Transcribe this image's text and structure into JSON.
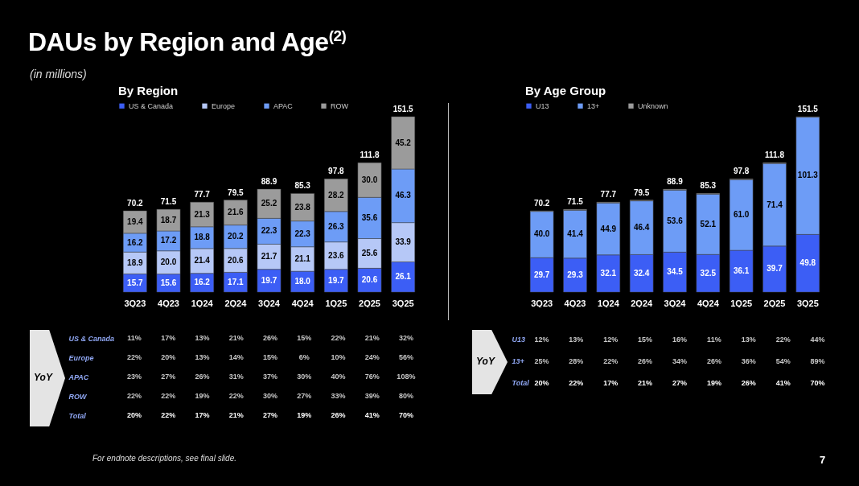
{
  "chart_data": [
    {
      "type": "other",
      "title": "DAUs by Region and Age$^{(2)}$",
      "subtitle": "(in millions)",
      "annotations": [
        "For endnote descriptions, see final slide.",
        "7"
      ]
    },
    {
      "type": "bar",
      "stacked": true,
      "title": "By Region",
      "legend": "top left",
      "categories": [
        "3Q23",
        "4Q23",
        "1Q24",
        "2Q24",
        "3Q24",
        "4Q24",
        "1Q25",
        "2Q25",
        "3Q25"
      ],
      "series": [
        {
          "name": "US & Canada",
          "color": "#3c5ef5",
          "values": [
            15.7,
            15.6,
            16.2,
            17.1,
            19.7,
            18.0,
            19.7,
            20.6,
            26.1
          ],
          "value_labels": [
            "15.7",
            "15.6",
            "16.2",
            "17.1",
            "19.7",
            "18.0",
            "19.7",
            "20.6",
            "26.1"
          ]
        },
        {
          "name": "Europe",
          "color": "#b6c8f7",
          "values": [
            18.9,
            20.0,
            21.4,
            20.6,
            21.7,
            21.1,
            23.6,
            25.6,
            33.9
          ],
          "value_labels": [
            "18.9",
            "20.0",
            "21.4",
            "20.6",
            "21.7",
            "21.1",
            "23.6",
            "25.6",
            "33.9"
          ]
        },
        {
          "name": "APAC",
          "color": "#6d9cf6",
          "values": [
            16.2,
            17.2,
            18.8,
            20.2,
            22.3,
            22.3,
            26.3,
            35.6,
            46.3
          ],
          "value_labels": [
            "16.2",
            "17.2",
            "18.8",
            "20.2",
            "22.3",
            "22.3",
            "26.3",
            "35.6",
            "46.3"
          ]
        },
        {
          "name": "ROW",
          "color": "#9b9b9b",
          "values": [
            19.4,
            18.7,
            21.3,
            21.6,
            25.2,
            23.8,
            28.2,
            30.0,
            45.2
          ],
          "value_labels": [
            "19.4",
            "18.7",
            "21.3",
            "21.6",
            "25.2",
            "23.8",
            "28.2",
            "30.0",
            "45.2"
          ]
        }
      ],
      "totals": [
        "70.2",
        "71.5",
        "77.7",
        "79.5",
        "88.9",
        "85.3",
        "97.8",
        "111.8",
        "151.5"
      ]
    },
    {
      "type": "other",
      "title": "YoY",
      "y_categories": [
        "US & Canada",
        "Europe",
        "APAC",
        "ROW",
        "Total"
      ],
      "cell_labels": [
        [
          "11%",
          "17%",
          "13%",
          "21%",
          "26%",
          "15%",
          "22%",
          "21%",
          "32%"
        ],
        [
          "22%",
          "20%",
          "13%",
          "14%",
          "15%",
          "6%",
          "10%",
          "24%",
          "56%"
        ],
        [
          "23%",
          "27%",
          "26%",
          "31%",
          "37%",
          "30%",
          "40%",
          "76%",
          "108%"
        ],
        [
          "22%",
          "22%",
          "19%",
          "22%",
          "30%",
          "27%",
          "33%",
          "39%",
          "80%"
        ],
        [
          "20%",
          "22%",
          "17%",
          "21%",
          "27%",
          "19%",
          "26%",
          "41%",
          "70%"
        ]
      ]
    },
    {
      "type": "bar",
      "stacked": true,
      "title": "By Age Group",
      "legend": "top left",
      "categories": [
        "3Q23",
        "4Q23",
        "1Q24",
        "2Q24",
        "3Q24",
        "4Q24",
        "1Q25",
        "2Q25",
        "3Q25"
      ],
      "series": [
        {
          "name": "U13",
          "color": "#3c5ef5",
          "values": [
            29.7,
            29.3,
            32.1,
            32.4,
            34.5,
            32.5,
            36.1,
            39.7,
            49.8
          ],
          "value_labels": [
            "29.7",
            "29.3",
            "32.1",
            "32.4",
            "34.5",
            "32.5",
            "36.1",
            "39.7",
            "49.8"
          ]
        },
        {
          "name": "13+",
          "color": "#6d9cf6",
          "values": [
            40.0,
            41.4,
            44.9,
            46.4,
            53.6,
            52.1,
            61.0,
            71.4,
            101.3
          ],
          "value_labels": [
            "40.0",
            "41.4",
            "44.9",
            "46.4",
            "53.6",
            "52.1",
            "61.0",
            "71.4",
            "101.3"
          ]
        },
        {
          "name": "Unknown",
          "color": "#9b9b9b",
          "values": [
            0.5,
            0.8,
            0.7,
            0.7,
            0.8,
            0.7,
            0.7,
            0.7,
            0.4
          ],
          "value_labels": [
            null,
            null,
            null,
            null,
            null,
            null,
            null,
            null,
            null
          ]
        }
      ],
      "totals": [
        "70.2",
        "71.5",
        "77.7",
        "79.5",
        "88.9",
        "85.3",
        "97.8",
        "111.8",
        "151.5"
      ]
    },
    {
      "type": "other",
      "title": "YoY",
      "y_categories": [
        "U13",
        "13+",
        "Total"
      ],
      "cell_labels": [
        [
          "12%",
          "13%",
          "12%",
          "15%",
          "16%",
          "11%",
          "13%",
          "22%",
          "44%"
        ],
        [
          "25%",
          "28%",
          "22%",
          "26%",
          "34%",
          "26%",
          "36%",
          "54%",
          "89%"
        ],
        [
          "20%",
          "22%",
          "17%",
          "21%",
          "27%",
          "19%",
          "26%",
          "41%",
          "70%"
        ]
      ]
    }
  ]
}
